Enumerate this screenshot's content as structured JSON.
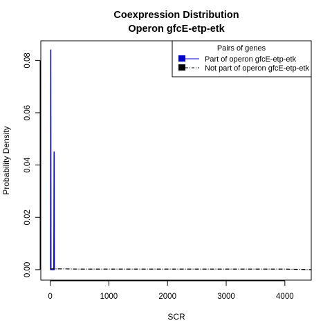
{
  "chart_data": {
    "type": "line",
    "title": [
      "Coexpression Distribution",
      "Operon gfcE-etp-etk"
    ],
    "xlabel": "SCR",
    "ylabel": "Probability Density",
    "xlim": [
      -160,
      4450
    ],
    "ylim": [
      -0.004,
      0.0875
    ],
    "x_ticks": [
      0,
      1000,
      2000,
      3000,
      4000
    ],
    "x_tick_labels": [
      "0",
      "1000",
      "2000",
      "3000",
      "4000"
    ],
    "y_ticks": [
      0.0,
      0.02,
      0.04,
      0.06,
      0.08
    ],
    "y_tick_labels": [
      "0.00",
      "0.02",
      "0.04",
      "0.06",
      "0.08"
    ],
    "legend": {
      "title": "Pairs of genes",
      "position": "top-right",
      "entries": [
        "Part of operon gfcE-etp-etk",
        "Not part of operon gfcE-etp-etk"
      ]
    },
    "series": [
      {
        "name": "Part of operon gfcE-etp-etk",
        "color": "#0000cc",
        "style": "solid",
        "x": [
          0,
          5,
          8,
          12,
          15,
          20,
          40,
          55,
          60,
          65,
          68,
          72,
          75
        ],
        "values": [
          0,
          0,
          0.084,
          0.084,
          0,
          0,
          0,
          0,
          0,
          0.045,
          0.045,
          0,
          0
        ]
      },
      {
        "name": "Not part of operon gfcE-etp-etk",
        "color": "#000000",
        "style": "dashed",
        "x": [
          0,
          200,
          500,
          1000,
          1500,
          2000,
          2500,
          3000,
          3500,
          4000,
          4200,
          4450
        ],
        "values": [
          0.0003,
          0.0003,
          0.0002,
          0.0002,
          0.0002,
          0.0002,
          0.0002,
          0.0002,
          0.0002,
          0.0002,
          0.0001,
          0.0
        ]
      }
    ],
    "legend_swatch_colors": [
      "#0000cc",
      "#000000"
    ],
    "grid": false
  }
}
